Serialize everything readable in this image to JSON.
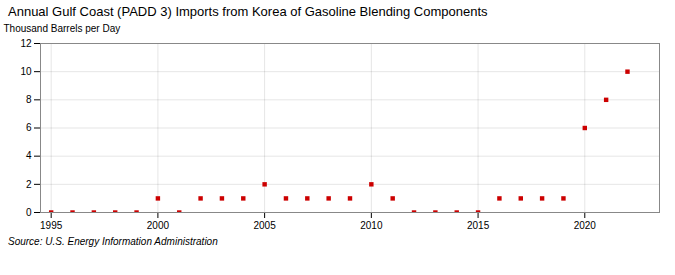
{
  "chart_data": {
    "type": "scatter",
    "title": "Annual Gulf Coast (PADD 3) Imports from Korea of Gasoline Blending Components",
    "ylabel": "Thousand Barrels per Day",
    "source": "Source: U.S. Energy Information Administration",
    "x": [
      1995,
      1996,
      1997,
      1998,
      1999,
      2000,
      2001,
      2002,
      2003,
      2004,
      2005,
      2006,
      2007,
      2008,
      2009,
      2010,
      2011,
      2012,
      2013,
      2014,
      2015,
      2016,
      2017,
      2018,
      2019,
      2020,
      2021,
      2022
    ],
    "values": [
      0,
      0,
      0,
      0,
      0,
      1,
      0,
      1,
      1,
      1,
      2,
      1,
      1,
      1,
      1,
      2,
      1,
      0,
      0,
      0,
      0,
      1,
      1,
      1,
      1,
      6,
      8,
      10
    ],
    "color": "#cc0000",
    "marker": "square",
    "xlim": [
      1994.5,
      2023.5
    ],
    "xticks": [
      1995,
      2000,
      2005,
      2010,
      2015,
      2020
    ],
    "ylim": [
      0,
      12
    ],
    "yticks": [
      0,
      2,
      4,
      6,
      8,
      10,
      12
    ],
    "grid": true
  }
}
